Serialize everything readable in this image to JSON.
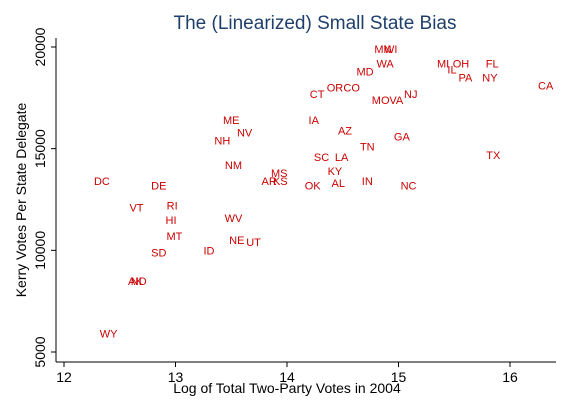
{
  "chart_data": {
    "type": "scatter",
    "title": "The (Linearized) Small State Bias",
    "xlabel": "Log of Total Two-Party Votes in 2004",
    "ylabel": "Kerry Votes Per State Delegate",
    "xlim": [
      11.95,
      16.35
    ],
    "ylim": [
      4700,
      20400
    ],
    "xticks": [
      12,
      13,
      14,
      15,
      16
    ],
    "yticks": [
      5000,
      10000,
      15000,
      20000
    ],
    "grid": false,
    "marker_color": "#cc0000",
    "points": [
      {
        "label": "WY",
        "x": 12.4,
        "y": 5900
      },
      {
        "label": "AK",
        "x": 12.64,
        "y": 8500
      },
      {
        "label": "ND",
        "x": 12.67,
        "y": 8500
      },
      {
        "label": "SD",
        "x": 12.85,
        "y": 9900
      },
      {
        "label": "DC",
        "x": 12.34,
        "y": 13400
      },
      {
        "label": "VT",
        "x": 12.65,
        "y": 12100
      },
      {
        "label": "DE",
        "x": 12.85,
        "y": 13200
      },
      {
        "label": "RI",
        "x": 12.97,
        "y": 12200
      },
      {
        "label": "HI",
        "x": 12.96,
        "y": 11500
      },
      {
        "label": "MT",
        "x": 12.99,
        "y": 10700
      },
      {
        "label": "ID",
        "x": 13.3,
        "y": 10000
      },
      {
        "label": "NE",
        "x": 13.55,
        "y": 10500
      },
      {
        "label": "UT",
        "x": 13.7,
        "y": 10400
      },
      {
        "label": "WV",
        "x": 13.52,
        "y": 11600
      },
      {
        "label": "NM",
        "x": 13.52,
        "y": 14200
      },
      {
        "label": "NH",
        "x": 13.42,
        "y": 15400
      },
      {
        "label": "ME",
        "x": 13.5,
        "y": 16400
      },
      {
        "label": "NV",
        "x": 13.62,
        "y": 15800
      },
      {
        "label": "AR",
        "x": 13.84,
        "y": 13400
      },
      {
        "label": "MS",
        "x": 13.93,
        "y": 13800
      },
      {
        "label": "KS",
        "x": 13.94,
        "y": 13400
      },
      {
        "label": "IA",
        "x": 14.24,
        "y": 16400
      },
      {
        "label": "CT",
        "x": 14.27,
        "y": 17700
      },
      {
        "label": "OR",
        "x": 14.43,
        "y": 18000
      },
      {
        "label": "CO",
        "x": 14.58,
        "y": 18000
      },
      {
        "label": "OK",
        "x": 14.23,
        "y": 13200
      },
      {
        "label": "SC",
        "x": 14.31,
        "y": 14600
      },
      {
        "label": "LA",
        "x": 14.49,
        "y": 14600
      },
      {
        "label": "AZ",
        "x": 14.52,
        "y": 15900
      },
      {
        "label": "KY",
        "x": 14.43,
        "y": 13900
      },
      {
        "label": "AL",
        "x": 14.46,
        "y": 13300
      },
      {
        "label": "TN",
        "x": 14.72,
        "y": 15100
      },
      {
        "label": "IN",
        "x": 14.72,
        "y": 13400
      },
      {
        "label": "MD",
        "x": 14.7,
        "y": 18800
      },
      {
        "label": "MN",
        "x": 14.86,
        "y": 19900
      },
      {
        "label": "WI",
        "x": 14.93,
        "y": 19900
      },
      {
        "label": "WA",
        "x": 14.88,
        "y": 19200
      },
      {
        "label": "MO",
        "x": 14.84,
        "y": 17400
      },
      {
        "label": "VA",
        "x": 14.98,
        "y": 17400
      },
      {
        "label": "NJ",
        "x": 15.11,
        "y": 17700
      },
      {
        "label": "GA",
        "x": 15.03,
        "y": 15600
      },
      {
        "label": "NC",
        "x": 15.09,
        "y": 13200
      },
      {
        "label": "MI",
        "x": 15.4,
        "y": 19200
      },
      {
        "label": "OH",
        "x": 15.56,
        "y": 19200
      },
      {
        "label": "IL",
        "x": 15.48,
        "y": 18900
      },
      {
        "label": "PA",
        "x": 15.6,
        "y": 18500
      },
      {
        "label": "FL",
        "x": 15.84,
        "y": 19200
      },
      {
        "label": "NY",
        "x": 15.82,
        "y": 18500
      },
      {
        "label": "TX",
        "x": 15.85,
        "y": 14700
      },
      {
        "label": "CA",
        "x": 16.32,
        "y": 18100
      }
    ]
  }
}
